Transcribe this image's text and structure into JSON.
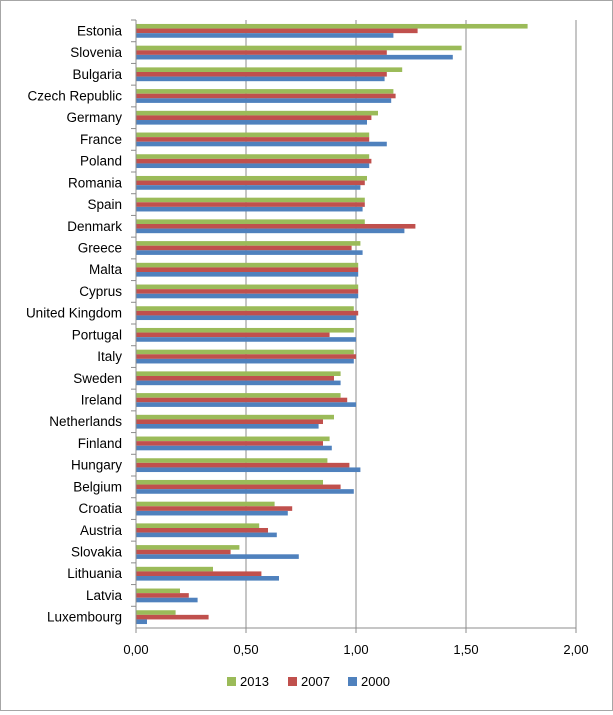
{
  "chart_data": {
    "type": "bar",
    "orientation": "horizontal",
    "categories": [
      "Estonia",
      "Slovenia",
      "Bulgaria",
      "Czech Republic",
      "Germany",
      "France",
      "Poland",
      "Romania",
      "Spain",
      "Denmark",
      "Greece",
      "Malta",
      "Cyprus",
      "United Kingdom",
      "Portugal",
      "Italy",
      "Sweden",
      "Ireland",
      "Netherlands",
      "Finland",
      "Hungary",
      "Belgium",
      "Croatia",
      "Austria",
      "Slovakia",
      "Lithuania",
      "Latvia",
      "Luxembourg"
    ],
    "series": [
      {
        "name": "2013",
        "color": "#9bbb59",
        "values": [
          1.78,
          1.48,
          1.21,
          1.17,
          1.1,
          1.06,
          1.06,
          1.05,
          1.04,
          1.04,
          1.02,
          1.01,
          1.01,
          0.99,
          0.99,
          0.99,
          0.93,
          0.93,
          0.9,
          0.88,
          0.87,
          0.85,
          0.63,
          0.56,
          0.47,
          0.35,
          0.2,
          0.18
        ]
      },
      {
        "name": "2007",
        "color": "#c0504d",
        "values": [
          1.28,
          1.14,
          1.14,
          1.18,
          1.07,
          1.06,
          1.07,
          1.04,
          1.04,
          1.27,
          0.98,
          1.01,
          1.01,
          1.01,
          0.88,
          1.0,
          0.9,
          0.96,
          0.85,
          0.85,
          0.97,
          0.93,
          0.71,
          0.6,
          0.43,
          0.57,
          0.24,
          0.33
        ]
      },
      {
        "name": "2000",
        "color": "#4f81bd",
        "values": [
          1.17,
          1.44,
          1.13,
          1.16,
          1.05,
          1.14,
          1.06,
          1.02,
          1.03,
          1.22,
          1.03,
          1.01,
          1.01,
          1.0,
          1.0,
          0.99,
          0.93,
          1.0,
          0.83,
          0.89,
          1.02,
          0.99,
          0.69,
          0.64,
          0.74,
          0.65,
          0.28,
          0.05
        ]
      }
    ],
    "x_ticks": [
      "0,00",
      "0,50",
      "1,00",
      "1,50",
      "2,00"
    ],
    "xlim": [
      0,
      2.0
    ],
    "grid": "vertical major gridlines",
    "legend": "bottom"
  }
}
